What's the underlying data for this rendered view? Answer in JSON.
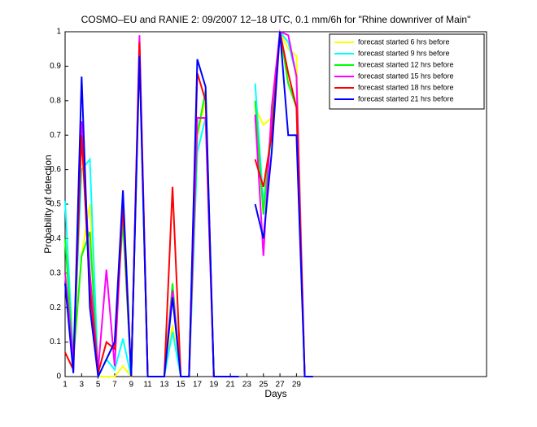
{
  "chart_data": {
    "type": "line",
    "title": "COSMO–EU and RANIE 2: 09/2007 12–18 UTC, 0.1 mm/6h for \"Rhine downriver of Main\"",
    "x_label": "Days",
    "y_label": "Probability of detection",
    "x": [
      1,
      2,
      3,
      4,
      5,
      6,
      7,
      8,
      9,
      10,
      11,
      12,
      13,
      14,
      15,
      16,
      17,
      18,
      19,
      20,
      21,
      22,
      23,
      24,
      25,
      26,
      27,
      28,
      29,
      30,
      31
    ],
    "xlim": [
      1,
      52
    ],
    "xticks": [
      1,
      3,
      5,
      7,
      9,
      11,
      13,
      15,
      17,
      19,
      21,
      23,
      25,
      27,
      29
    ],
    "ylim": [
      0,
      1
    ],
    "yticks": [
      0,
      0.1,
      0.2,
      0.3,
      0.4,
      0.5,
      0.6,
      0.7,
      0.8,
      0.9,
      1
    ],
    "legend": "upper right",
    "series": [
      {
        "name": "forecast started 6 hrs before",
        "color": "#ffff00",
        "values": [
          0.3,
          0.05,
          0.35,
          0.5,
          0,
          0,
          0,
          0.03,
          0,
          0.95,
          0,
          0,
          0,
          0.15,
          0,
          0,
          0.7,
          0.8,
          0,
          0,
          0,
          0,
          null,
          0.78,
          0.73,
          0.75,
          1,
          0.95,
          0.93,
          0,
          0
        ]
      },
      {
        "name": "forecast started 9 hrs before",
        "color": "#00ffff",
        "values": [
          0.51,
          0.05,
          0.6,
          0.63,
          0,
          0.05,
          0.02,
          0.11,
          0,
          0.95,
          0,
          0,
          0,
          0.13,
          0,
          0,
          0.65,
          0.75,
          0,
          0,
          0,
          0,
          null,
          0.85,
          0.5,
          0.7,
          1,
          0.97,
          0.87,
          0,
          0
        ]
      },
      {
        "name": "forecast started 12 hrs before",
        "color": "#00ff00",
        "values": [
          0.4,
          0.05,
          0.35,
          0.42,
          0,
          0.05,
          0.1,
          0.45,
          0,
          0.95,
          0,
          0,
          0,
          0.27,
          0,
          0,
          0.7,
          0.83,
          0,
          0,
          0,
          0,
          null,
          0.8,
          0.47,
          0.75,
          1,
          0.85,
          0.78,
          0,
          0
        ]
      },
      {
        "name": "forecast started 15 hrs before",
        "color": "#ff00ff",
        "values": [
          0.3,
          0.05,
          0.74,
          0.3,
          0.02,
          0.31,
          0.03,
          0.5,
          0,
          0.99,
          0,
          0,
          0,
          0.25,
          0,
          0,
          0.75,
          0.75,
          0,
          0,
          0,
          0,
          null,
          0.76,
          0.35,
          0.78,
          1,
          0.99,
          0.87,
          0,
          0
        ]
      },
      {
        "name": "forecast started 18 hrs before",
        "color": "#ff0000",
        "values": [
          0.07,
          0.02,
          0.7,
          0.25,
          0.01,
          0.1,
          0.08,
          0.5,
          0,
          0.97,
          0,
          0,
          0,
          0.55,
          0,
          0,
          0.88,
          0.8,
          0,
          0,
          0,
          0,
          null,
          0.63,
          0.55,
          0.7,
          1,
          0.88,
          0.78,
          0,
          0
        ]
      },
      {
        "name": "forecast started 21 hrs before",
        "color": "#0000ff",
        "values": [
          0.27,
          0.01,
          0.87,
          0.2,
          0,
          0.05,
          0.1,
          0.54,
          0,
          0.93,
          0,
          0,
          0,
          0.23,
          0,
          0,
          0.92,
          0.84,
          0,
          0,
          0,
          0,
          null,
          0.5,
          0.4,
          0.65,
          1,
          0.7,
          0.7,
          0,
          0
        ]
      }
    ]
  }
}
